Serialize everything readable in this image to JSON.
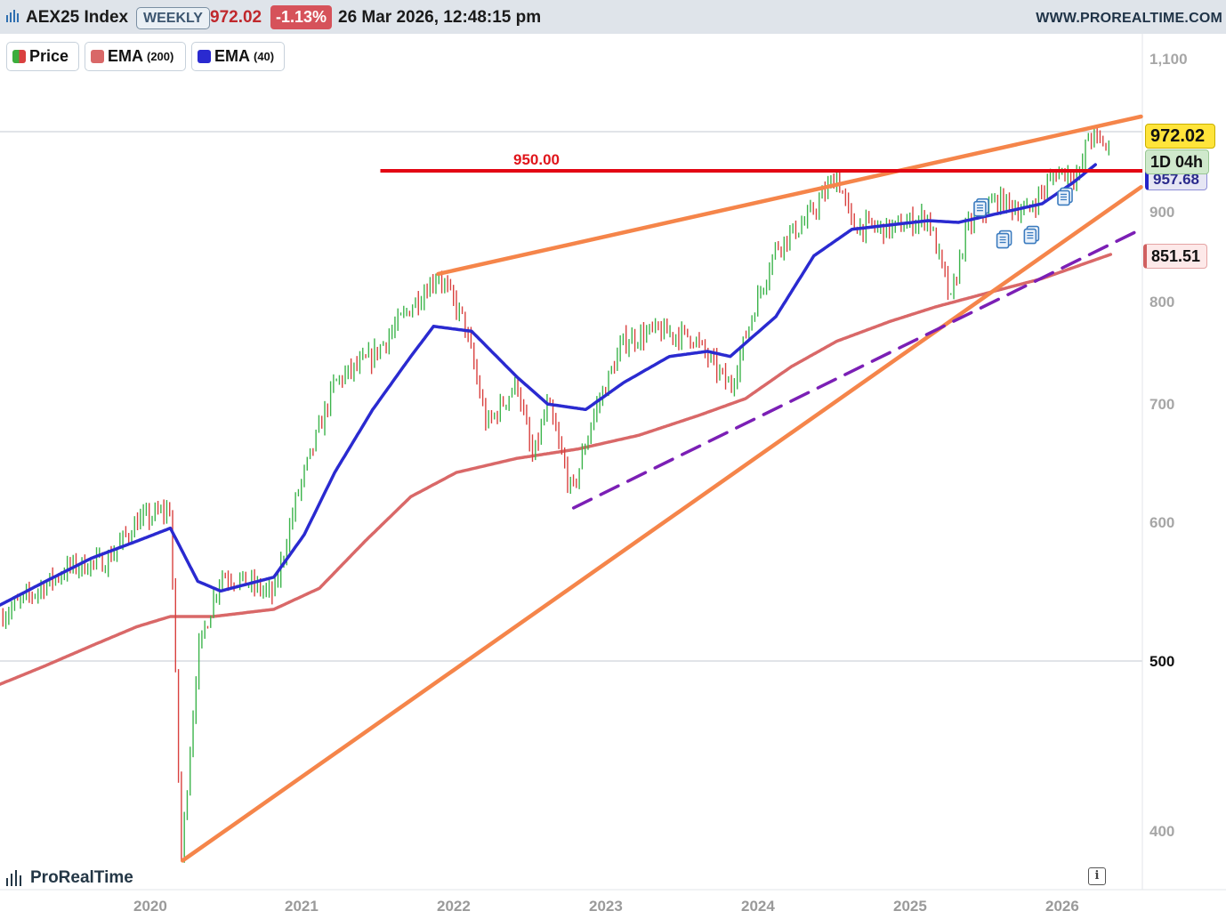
{
  "header": {
    "symbol": "AEX25 Index",
    "period": "WEEKLY",
    "last_price": "972.02",
    "change_pct": "-1.13%",
    "timestamp": "26 Mar 2026, 12:48:15 pm",
    "website": "WWW.PROREALTIME.COM"
  },
  "legend": [
    {
      "label": "Price",
      "param": "",
      "color": "#3cae3c"
    },
    {
      "label": "EMA",
      "param": "(200)",
      "color": "#d96868"
    },
    {
      "label": "EMA",
      "param": "(40)",
      "color": "#2a2ad0"
    }
  ],
  "price_tags": {
    "last": "972.02",
    "timer": "1D 04h",
    "ema40": "957.68",
    "ema200": "851.51"
  },
  "level_label": "950.00",
  "brand": "ProRealTime",
  "info_icon": "i",
  "colors": {
    "up": "#3cb44b",
    "down": "#d9413f",
    "ema40": "#2a2ad0",
    "ema200": "#d96868",
    "trendline": "#f5854a",
    "support_dashed": "#7b1fb5",
    "level": "#e30613"
  },
  "chart_data": {
    "type": "candlestick",
    "title": "AEX25 Index",
    "y_scale": "log",
    "ylim": [
      385,
      1110
    ],
    "y_ticks": [
      {
        "label": "1,100",
        "value": 1100,
        "faint": true
      },
      {
        "label": "900",
        "value": 900,
        "faint": true
      },
      {
        "label": "800",
        "value": 800,
        "faint": true
      },
      {
        "label": "700",
        "value": 700,
        "faint": true
      },
      {
        "label": "600",
        "value": 600,
        "faint": true
      },
      {
        "label": "500",
        "value": 500,
        "faint": false
      },
      {
        "label": "400",
        "value": 400,
        "faint": true
      }
    ],
    "x_ticks": [
      "2020",
      "2021",
      "2022",
      "2023",
      "2024",
      "2025",
      "2026"
    ],
    "x_range": [
      2019.0,
      2026.5
    ],
    "gridlines": [
      1000,
      500
    ],
    "horizontal_level": {
      "value": 950.0,
      "from": 2021.5
    },
    "price_path": [
      [
        2019.0,
        530
      ],
      [
        2019.2,
        545
      ],
      [
        2019.45,
        565
      ],
      [
        2019.7,
        570
      ],
      [
        2019.9,
        600
      ],
      [
        2020.12,
        610
      ],
      [
        2020.19,
        385
      ],
      [
        2020.3,
        505
      ],
      [
        2020.45,
        560
      ],
      [
        2020.6,
        555
      ],
      [
        2020.8,
        545
      ],
      [
        2020.95,
        620
      ],
      [
        2021.2,
        720
      ],
      [
        2021.45,
        745
      ],
      [
        2021.7,
        795
      ],
      [
        2021.88,
        830
      ],
      [
        2022.05,
        780
      ],
      [
        2022.2,
        680
      ],
      [
        2022.4,
        720
      ],
      [
        2022.5,
        650
      ],
      [
        2022.6,
        700
      ],
      [
        2022.76,
        622
      ],
      [
        2022.9,
        690
      ],
      [
        2023.1,
        760
      ],
      [
        2023.3,
        770
      ],
      [
        2023.55,
        765
      ],
      [
        2023.8,
        715
      ],
      [
        2023.95,
        790
      ],
      [
        2024.1,
        860
      ],
      [
        2024.3,
        890
      ],
      [
        2024.5,
        945
      ],
      [
        2024.6,
        885
      ],
      [
        2024.85,
        880
      ],
      [
        2025.1,
        895
      ],
      [
        2025.25,
        800
      ],
      [
        2025.35,
        880
      ],
      [
        2025.55,
        915
      ],
      [
        2025.75,
        900
      ],
      [
        2025.95,
        950
      ],
      [
        2026.1,
        945
      ],
      [
        2026.15,
        995
      ],
      [
        2026.25,
        985
      ],
      [
        2026.3,
        972.02
      ]
    ],
    "ema40_path": [
      [
        2019.0,
        538
      ],
      [
        2019.3,
        555
      ],
      [
        2019.6,
        572
      ],
      [
        2019.9,
        585
      ],
      [
        2020.12,
        595
      ],
      [
        2020.3,
        555
      ],
      [
        2020.45,
        548
      ],
      [
        2020.8,
        558
      ],
      [
        2021.0,
        590
      ],
      [
        2021.2,
        640
      ],
      [
        2021.45,
        695
      ],
      [
        2021.7,
        745
      ],
      [
        2021.85,
        775
      ],
      [
        2022.1,
        770
      ],
      [
        2022.4,
        725
      ],
      [
        2022.6,
        700
      ],
      [
        2022.85,
        695
      ],
      [
        2023.1,
        720
      ],
      [
        2023.4,
        745
      ],
      [
        2023.65,
        750
      ],
      [
        2023.8,
        745
      ],
      [
        2024.1,
        785
      ],
      [
        2024.35,
        850
      ],
      [
        2024.6,
        880
      ],
      [
        2024.85,
        885
      ],
      [
        2025.1,
        890
      ],
      [
        2025.3,
        888
      ],
      [
        2025.55,
        898
      ],
      [
        2025.85,
        910
      ],
      [
        2026.05,
        935
      ],
      [
        2026.2,
        957.68
      ]
    ],
    "ema200_path": [
      [
        2019.0,
        485
      ],
      [
        2019.3,
        497
      ],
      [
        2019.6,
        510
      ],
      [
        2019.9,
        523
      ],
      [
        2020.12,
        530
      ],
      [
        2020.4,
        530
      ],
      [
        2020.8,
        535
      ],
      [
        2021.1,
        550
      ],
      [
        2021.4,
        585
      ],
      [
        2021.7,
        620
      ],
      [
        2022.0,
        640
      ],
      [
        2022.4,
        652
      ],
      [
        2022.8,
        660
      ],
      [
        2023.2,
        672
      ],
      [
        2023.6,
        690
      ],
      [
        2023.9,
        705
      ],
      [
        2024.2,
        735
      ],
      [
        2024.5,
        760
      ],
      [
        2024.85,
        780
      ],
      [
        2025.15,
        795
      ],
      [
        2025.5,
        810
      ],
      [
        2025.85,
        825
      ],
      [
        2026.3,
        851.51
      ]
    ],
    "trendlines": [
      {
        "kind": "resistance",
        "from": [
          2021.88,
          830
        ],
        "to": [
          2026.5,
          1020
        ]
      },
      {
        "kind": "support",
        "from": [
          2020.2,
          385
        ],
        "to": [
          2026.5,
          930
        ]
      },
      {
        "kind": "support-dashed",
        "from": [
          2022.77,
          611
        ],
        "to": [
          2026.5,
          880
        ]
      }
    ]
  }
}
